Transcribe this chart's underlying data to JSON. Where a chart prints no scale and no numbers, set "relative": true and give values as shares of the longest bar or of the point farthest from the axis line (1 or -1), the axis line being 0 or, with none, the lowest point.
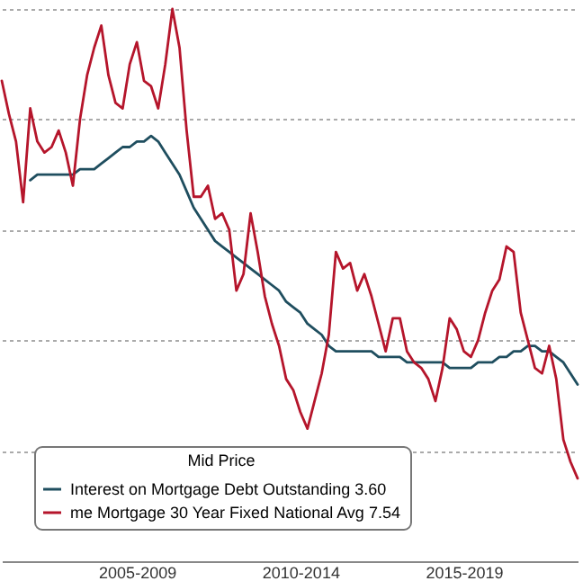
{
  "chart_data": {
    "type": "line",
    "relative": true,
    "legend_title": "Mid Price",
    "legend": "bottom left",
    "grid": "y",
    "line_style": "solid",
    "categories": [
      null,
      null,
      null,
      null,
      null,
      null,
      null,
      null,
      null,
      null,
      null,
      null,
      null,
      null,
      null,
      null,
      null,
      null,
      null,
      "2005-2009",
      null,
      null,
      null,
      null,
      null,
      null,
      null,
      null,
      null,
      null,
      null,
      null,
      null,
      null,
      null,
      null,
      null,
      null,
      null,
      null,
      null,
      null,
      "2010-2014",
      null,
      null,
      null,
      null,
      null,
      null,
      null,
      null,
      null,
      null,
      null,
      null,
      null,
      null,
      null,
      null,
      null,
      null,
      null,
      null,
      null,
      null,
      "2015-2019",
      null,
      null,
      null,
      null,
      null,
      null,
      null,
      null,
      null,
      null,
      null,
      null,
      null,
      null,
      null,
      null
    ],
    "series": [
      {
        "name": "Interest on Mortgage Debt Outstanding  3.60",
        "color": "#1f4e5f",
        "values": [
          null,
          null,
          null,
          null,
          0.69,
          0.7,
          0.7,
          0.7,
          0.7,
          0.7,
          0.7,
          0.71,
          0.71,
          0.71,
          0.72,
          0.73,
          0.74,
          0.75,
          0.75,
          0.76,
          0.76,
          0.77,
          0.76,
          0.74,
          0.72,
          0.7,
          0.67,
          0.64,
          0.62,
          0.6,
          0.58,
          0.57,
          0.56,
          0.55,
          0.54,
          0.53,
          0.52,
          0.51,
          0.5,
          0.49,
          0.47,
          0.46,
          0.45,
          0.43,
          0.42,
          0.41,
          0.39,
          0.38,
          0.38,
          0.38,
          0.38,
          0.38,
          0.38,
          0.37,
          0.37,
          0.37,
          0.37,
          0.36,
          0.36,
          0.36,
          0.36,
          0.36,
          0.36,
          0.35,
          0.35,
          0.35,
          0.35,
          0.36,
          0.36,
          0.36,
          0.37,
          0.37,
          0.38,
          0.38,
          0.39,
          0.39,
          0.38,
          0.38,
          0.37,
          0.36,
          0.34,
          0.32
        ]
      },
      {
        "name": "me Mortgage 30 Year Fixed National Avg 7.54",
        "color": "#b5152b",
        "values": [
          0.87,
          0.81,
          0.76,
          0.65,
          0.82,
          0.76,
          0.74,
          0.75,
          0.78,
          0.74,
          0.68,
          0.8,
          0.88,
          0.93,
          0.97,
          0.88,
          0.83,
          0.82,
          0.9,
          0.94,
          0.87,
          0.86,
          0.82,
          0.9,
          1.0,
          0.93,
          0.78,
          0.66,
          0.66,
          0.68,
          0.62,
          0.63,
          0.6,
          0.49,
          0.52,
          0.63,
          0.56,
          0.48,
          0.43,
          0.39,
          0.33,
          0.31,
          0.27,
          0.24,
          0.29,
          0.34,
          0.41,
          0.56,
          0.53,
          0.54,
          0.49,
          0.52,
          0.48,
          0.43,
          0.38,
          0.44,
          0.44,
          0.38,
          0.36,
          0.35,
          0.33,
          0.29,
          0.35,
          0.44,
          0.42,
          0.38,
          0.37,
          0.4,
          0.45,
          0.49,
          0.51,
          0.57,
          0.56,
          0.45,
          0.4,
          0.35,
          0.34,
          0.39,
          0.33,
          0.22,
          0.18,
          0.15
        ]
      }
    ]
  }
}
